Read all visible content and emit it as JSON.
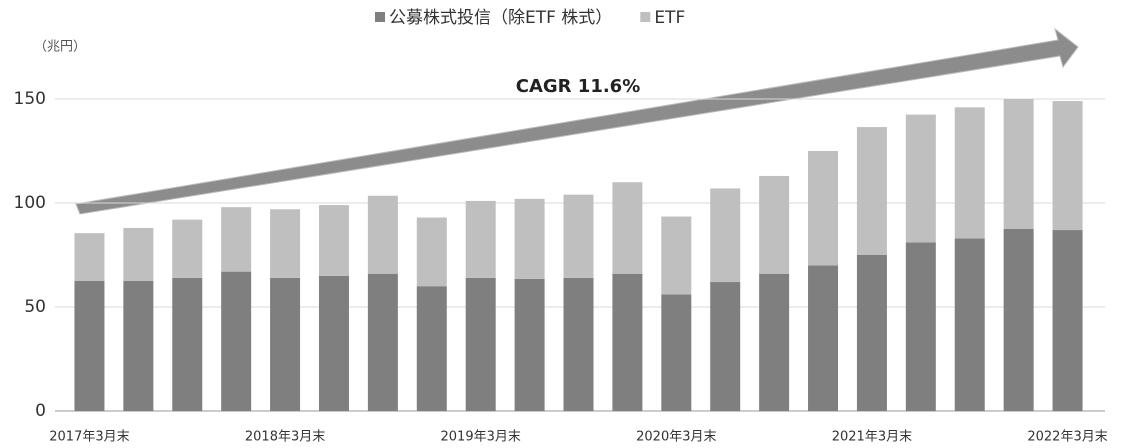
{
  "chart_data": {
    "type": "stacked_bar",
    "annotations": {
      "unit": "（兆円）",
      "cagr": "CAGR 11.6%"
    },
    "categories": [
      "2017年3月末",
      null,
      null,
      null,
      "2018年3月末",
      null,
      null,
      null,
      "2019年3月末",
      null,
      null,
      null,
      "2020年3月末",
      null,
      null,
      null,
      "2021年3月末",
      null,
      null,
      null,
      "2022年3月末"
    ],
    "series": [
      {
        "name": "公募株式投信（除ETF 株式）",
        "color": "#7f7f7f",
        "values": [
          62.5,
          62.5,
          64,
          67,
          64,
          65,
          66,
          60,
          64,
          63.5,
          64,
          66,
          56,
          62,
          66,
          70,
          75,
          81,
          83,
          87.5,
          87
        ]
      },
      {
        "name": "ETF",
        "color": "#bfbfbf",
        "values": [
          23,
          25.5,
          28,
          31,
          33,
          34,
          37.5,
          33,
          37,
          38.5,
          40,
          44,
          37.5,
          45,
          47,
          55,
          61.5,
          61.5,
          63,
          62.5,
          62
        ]
      }
    ],
    "ylim": [
      0,
      150
    ],
    "yticks": [
      0,
      50,
      100,
      150
    ],
    "grid": true
  }
}
